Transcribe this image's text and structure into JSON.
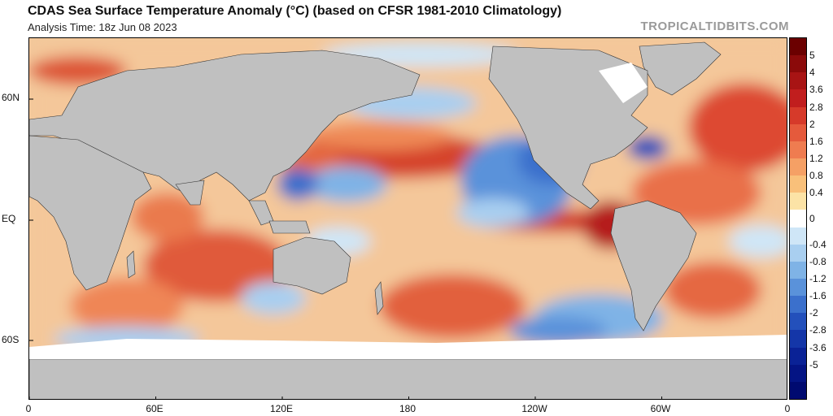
{
  "header": {
    "title": "CDAS Sea Surface Temperature Anomaly (°C) (based on CFSR 1981-2010 Climatology)",
    "subtitle": "Analysis Time: 18z Jun 08 2023",
    "brand": "TROPICALTIDBITS.COM"
  },
  "map": {
    "lat_labels": [
      "60N",
      "EQ",
      "60S"
    ],
    "lon_labels": [
      "0",
      "60E",
      "120E",
      "180",
      "120W",
      "60W",
      "0"
    ],
    "land_color": "#c0c0c0",
    "ice_color": "#ffffff"
  },
  "colorbar": {
    "labels": [
      "5",
      "4",
      "3.6",
      "2.8",
      "2",
      "1.6",
      "1.2",
      "0.8",
      "0.4",
      "0",
      "-0.4",
      "-0.8",
      "-1.2",
      "-1.6",
      "-2",
      "-2.8",
      "-3.6",
      "-5"
    ],
    "colors": [
      "#6b0000",
      "#8b0a0a",
      "#a81414",
      "#c11e1e",
      "#d63a2a",
      "#e55a3c",
      "#ef7c50",
      "#f5a065",
      "#f9c07a",
      "#fce3a6",
      "#ffffff",
      "#cfe6f7",
      "#a9cff0",
      "#7fb3e6",
      "#5a92da",
      "#3b70cc",
      "#2350bb",
      "#1436a8",
      "#0a2296",
      "#041484",
      "#000a70"
    ]
  }
}
